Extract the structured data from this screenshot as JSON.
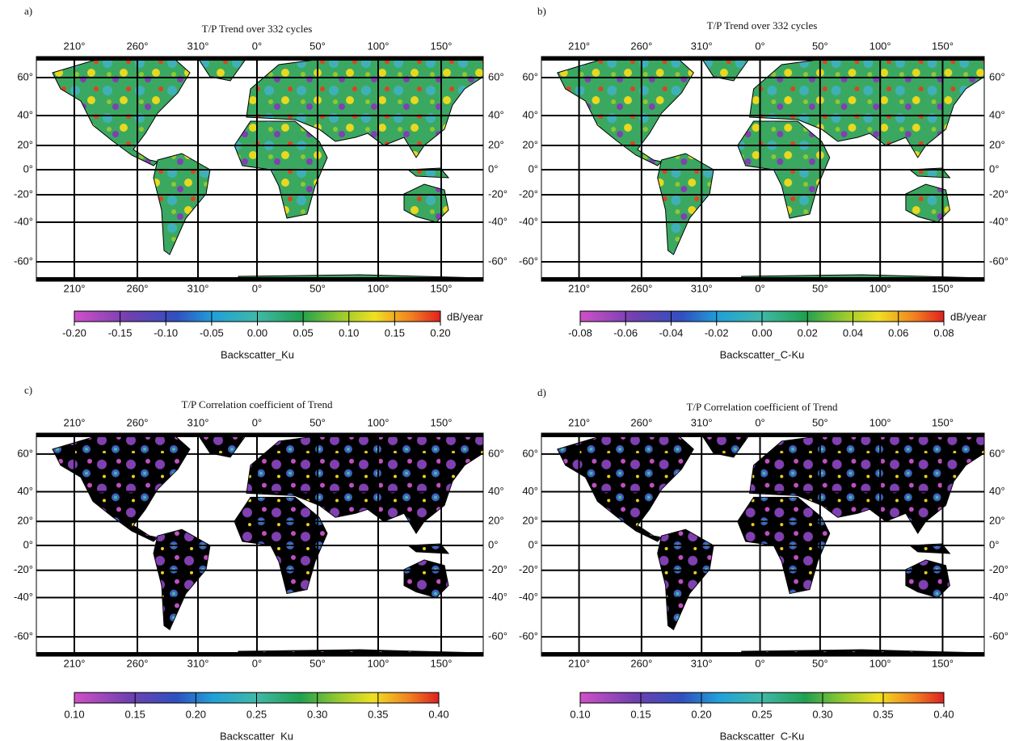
{
  "panels": [
    {
      "label": "a)",
      "title": "T/P Trend over 332 cycles",
      "lon_labels": [
        "210°",
        "260°",
        "310°",
        "0°",
        "50°",
        "100°",
        "150°"
      ],
      "lat_labels": [
        "60°",
        "40°",
        "20°",
        "0°",
        "-20°",
        "-40°",
        "-60°"
      ],
      "colorbar": {
        "ticks": [
          "-0.20",
          "-0.15",
          "-0.10",
          "-0.05",
          "0.00",
          "0.05",
          "0.10",
          "0.15",
          "0.20"
        ],
        "unit": "dB/year",
        "label": "Backscatter_Ku"
      }
    },
    {
      "label": "b)",
      "title": "T/P Trend over 332 cycles",
      "lon_labels": [
        "210°",
        "260°",
        "310°",
        "0°",
        "50°",
        "100°",
        "150°"
      ],
      "lat_labels": [
        "60°",
        "40°",
        "20°",
        "0°",
        "-20°",
        "-40°",
        "-60°"
      ],
      "colorbar": {
        "ticks": [
          "-0.08",
          "-0.06",
          "-0.04",
          "-0.02",
          "0.00",
          "0.02",
          "0.04",
          "0.06",
          "0.08"
        ],
        "unit": "dB/year",
        "label": "Backscatter_C-Ku"
      }
    },
    {
      "label": "c)",
      "title": "T/P Correlation coefficient of Trend",
      "lon_labels": [
        "210°",
        "260°",
        "310°",
        "0°",
        "50°",
        "100°",
        "150°"
      ],
      "lat_labels": [
        "60°",
        "40°",
        "20°",
        "0°",
        "-20°",
        "-40°",
        "-60°"
      ],
      "colorbar": {
        "ticks": [
          "0.10",
          "0.15",
          "0.20",
          "0.25",
          "0.30",
          "0.35",
          "0.40"
        ],
        "label": "Backscatter_Ku"
      }
    },
    {
      "label": "d)",
      "title": "T/P Correlation coefficient of Trend",
      "lon_labels": [
        "210°",
        "260°",
        "310°",
        "0°",
        "50°",
        "100°",
        "150°"
      ],
      "lat_labels": [
        "60°",
        "40°",
        "20°",
        "0°",
        "-20°",
        "-40°",
        "-60°"
      ],
      "colorbar": {
        "ticks": [
          "0.10",
          "0.15",
          "0.20",
          "0.25",
          "0.30",
          "0.35",
          "0.40"
        ],
        "label": "Backscatter_C-Ku"
      }
    }
  ]
}
